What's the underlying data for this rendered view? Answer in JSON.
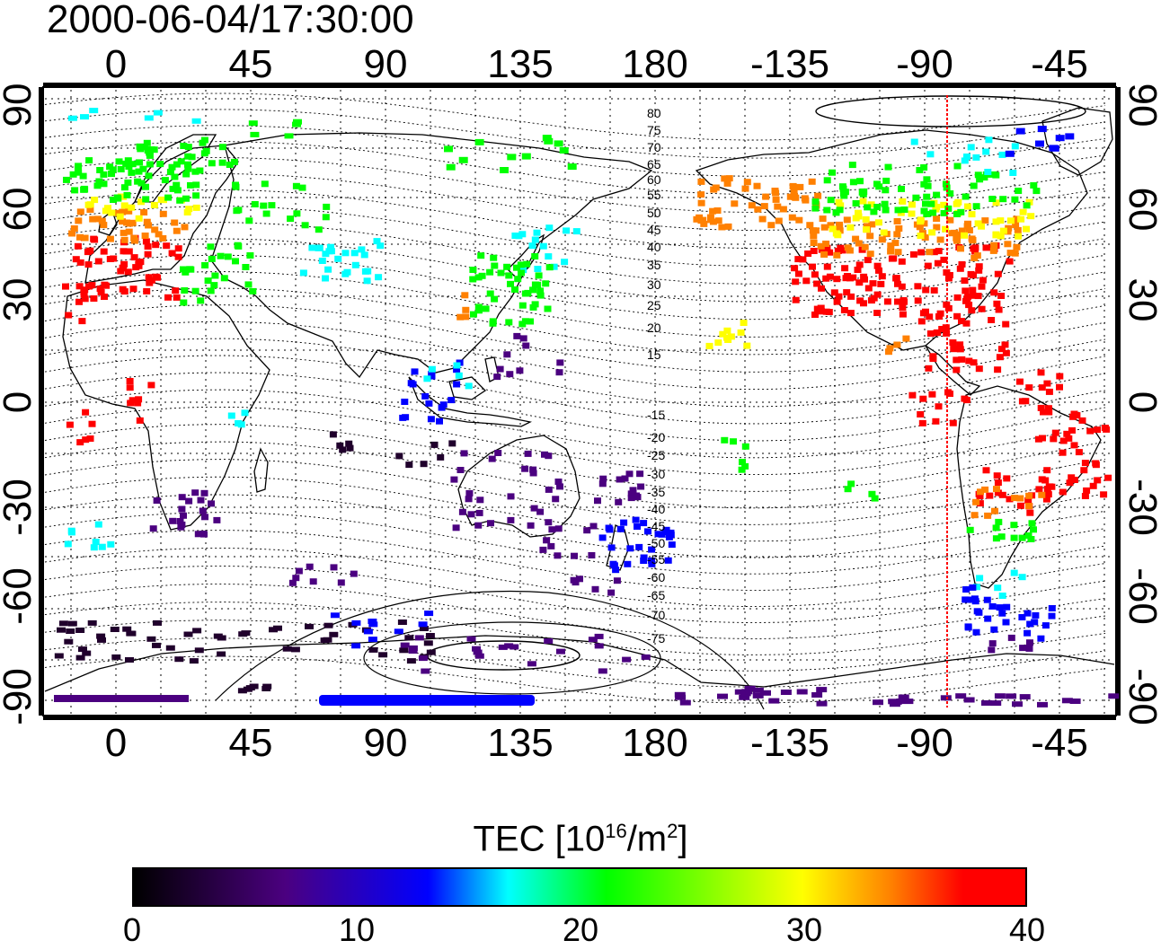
{
  "title": "2000-06-04/17:30:00",
  "map": {
    "lon_ticks": [
      "0",
      "45",
      "90",
      "135",
      "180",
      "-135",
      "-90",
      "-45"
    ],
    "lat_ticks": [
      "90",
      "60",
      "30",
      "0",
      "-30",
      "-60",
      "-90"
    ],
    "contour_labels_north": [
      "80",
      "75",
      "70",
      "65",
      "60",
      "55",
      "50",
      "45",
      "40",
      "35",
      "30",
      "25",
      "20",
      "15"
    ],
    "contour_labels_south": [
      "-15",
      "-20",
      "-25",
      "-30",
      "-35",
      "-40",
      "-45",
      "-50",
      "-55",
      "-60",
      "-65",
      "-70",
      "-75"
    ],
    "terminator_color": "#ff0000"
  },
  "colorbar": {
    "title_prefix": "TEC  [10",
    "title_exp1": "16",
    "title_mid": "/m",
    "title_exp2": "2",
    "title_suffix": "]",
    "ticks": [
      "0",
      "10",
      "20",
      "30",
      "40"
    ]
  },
  "palette": {
    "red": "#ff0000",
    "orange": "#ff8000",
    "yellow": "#ffff00",
    "green": "#00ff00",
    "cyan": "#00ffff",
    "blue": "#0000ff",
    "violet": "#4b0080",
    "dark": "#20002c"
  }
}
